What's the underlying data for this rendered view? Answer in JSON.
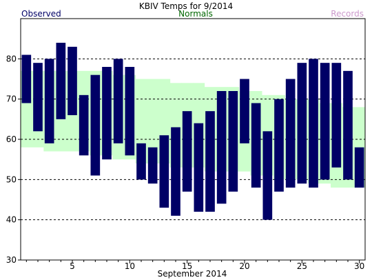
{
  "chart_data": {
    "type": "bar",
    "title": "KBIV Temps for 9/2014",
    "xlabel": "September 2014",
    "legend": {
      "observed": "Observed",
      "normals": "Normals",
      "records": "Records"
    },
    "colors": {
      "observed": "#000066",
      "normals_band": "#ccffcc",
      "normals_text": "#006600",
      "records_text": "#cc99cc",
      "title_text": "#000000"
    },
    "ylim": [
      30,
      90
    ],
    "yticks": [
      30,
      40,
      50,
      60,
      70,
      80
    ],
    "gridlines": [
      40,
      50,
      60,
      70,
      80
    ],
    "xlim": [
      0.5,
      30.5
    ],
    "xticks": [
      5,
      10,
      15,
      20,
      25,
      30
    ],
    "days": [
      1,
      2,
      3,
      4,
      5,
      6,
      7,
      8,
      9,
      10,
      11,
      12,
      13,
      14,
      15,
      16,
      17,
      18,
      19,
      20,
      21,
      22,
      23,
      24,
      25,
      26,
      27,
      28,
      29,
      30
    ],
    "observed_high": [
      81,
      79,
      80,
      84,
      83,
      71,
      76,
      78,
      80,
      78,
      59,
      58,
      61,
      63,
      67,
      64,
      67,
      72,
      72,
      75,
      69,
      62,
      70,
      75,
      79,
      80,
      79,
      79,
      77,
      58
    ],
    "observed_low": [
      69,
      62,
      59,
      65,
      66,
      56,
      51,
      55,
      59,
      56,
      50,
      49,
      43,
      41,
      47,
      42,
      42,
      44,
      47,
      59,
      48,
      40,
      47,
      48,
      49,
      48,
      50,
      53,
      50,
      48
    ],
    "normal_high": [
      77,
      77,
      77,
      77,
      77,
      77,
      77,
      77,
      76,
      76,
      75,
      75,
      75,
      74,
      74,
      74,
      73,
      73,
      73,
      72,
      72,
      71,
      71,
      70,
      70,
      70,
      69,
      69,
      68,
      68
    ],
    "normal_low": [
      58,
      58,
      57,
      57,
      57,
      57,
      56,
      56,
      55,
      55,
      54,
      54,
      54,
      53,
      53,
      53,
      52,
      52,
      52,
      52,
      51,
      51,
      50,
      50,
      50,
      49,
      49,
      48,
      48,
      48
    ]
  }
}
